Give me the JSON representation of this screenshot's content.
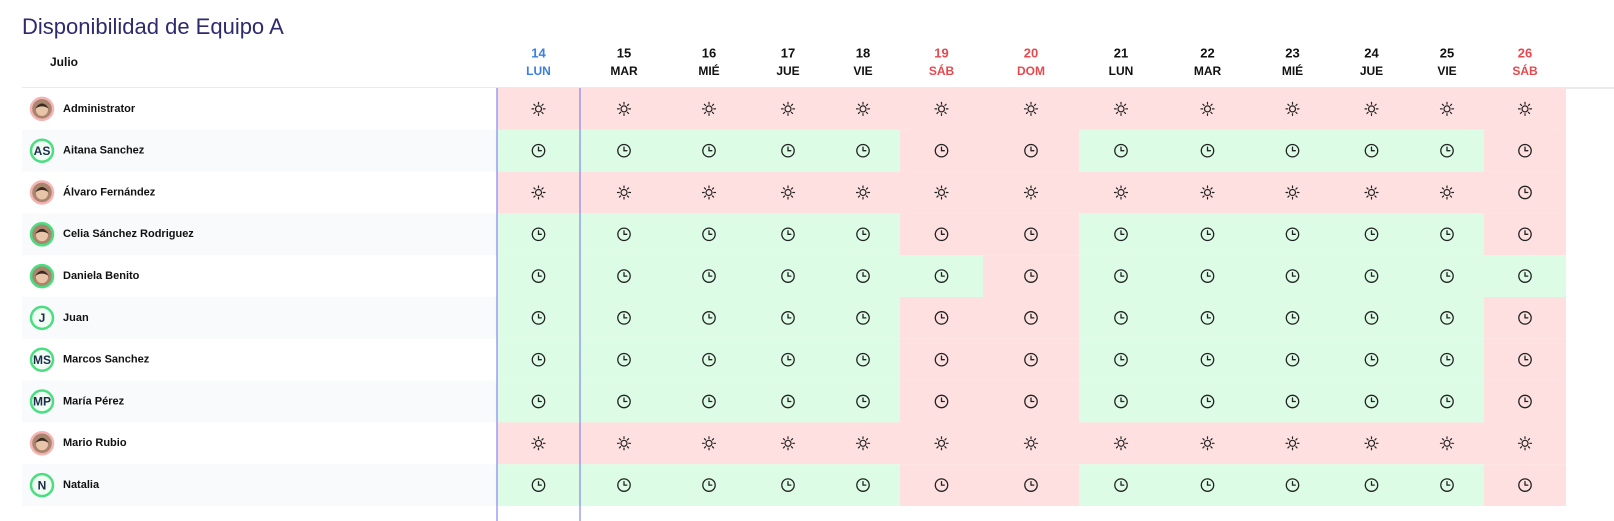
{
  "title": "Disponibilidad de Equipo A",
  "month": "Julio",
  "days": [
    {
      "day": 14,
      "weekday": "LUN",
      "color": "#3b7fe0"
    },
    {
      "day": 15,
      "weekday": "MAR",
      "color": "#111111"
    },
    {
      "day": 16,
      "weekday": "MIÉ",
      "color": "#111111"
    },
    {
      "day": 17,
      "weekday": "JUE",
      "color": "#111111"
    },
    {
      "day": 18,
      "weekday": "VIE",
      "color": "#111111"
    },
    {
      "day": 19,
      "weekday": "SÁB",
      "color": "#e5484d"
    },
    {
      "day": 20,
      "weekday": "DOM",
      "color": "#e5484d"
    },
    {
      "day": 21,
      "weekday": "LUN",
      "color": "#111111"
    },
    {
      "day": 22,
      "weekday": "MAR",
      "color": "#111111"
    },
    {
      "day": 23,
      "weekday": "MIÉ",
      "color": "#111111"
    },
    {
      "day": 24,
      "weekday": "JUE",
      "color": "#111111"
    },
    {
      "day": 25,
      "weekday": "VIE",
      "color": "#111111"
    },
    {
      "day": 26,
      "weekday": "SÁB",
      "color": "#e5484d"
    }
  ],
  "rows": [
    {
      "name": "Administrator",
      "ring": "#f4b4b4",
      "cells": "RRRRRRRRRRRRR",
      "icons": "SSSSSSSSSSSSS"
    },
    {
      "name": "Aitana Sanchez",
      "initials": "AS",
      "ring": "#4ade80",
      "cells": "GGGGGRRGGGGGR",
      "icons": "CCCCCCCCCCCCC"
    },
    {
      "name": "Álvaro Fernández",
      "ring": "#f4b4b4",
      "cells": "RRRRRRRRRRRRR",
      "icons": "SSSSSSSSSSSSC"
    },
    {
      "name": "Celia Sánchez Rodriguez",
      "ring": "#4ade80",
      "cells": "GGGGGRRGGGGGR",
      "icons": "CCCCCCCCCCCCC"
    },
    {
      "name": "Daniela Benito",
      "ring": "#4ade80",
      "cells": "GGGGGGRGGGGGG",
      "icons": "CCCCCCCCCCCCC"
    },
    {
      "name": "Juan",
      "initials": "J",
      "ring": "#4ade80",
      "cells": "GGGGGRRGGGGGR",
      "icons": "CCCCCCCCCCCCC"
    },
    {
      "name": "Marcos Sanchez",
      "initials": "MS",
      "ring": "#4ade80",
      "cells": "GGGGGRRGGGGGR",
      "icons": "CCCCCCCCCCCCC"
    },
    {
      "name": "María Pérez",
      "initials": "MP",
      "ring": "#4ade80",
      "cells": "GGGGGRRGGGGGR",
      "icons": "CCCCCCCCCCCCC"
    },
    {
      "name": "Mario Rubio",
      "ring": "#f4b4b4",
      "cells": "RRRRRRRRRRRRR",
      "icons": "SSSSSSSSSSSSS"
    },
    {
      "name": "Natalia",
      "initials": "N",
      "ring": "#4ade80",
      "cells": "GGGGGRRGGGGGR",
      "icons": "CCCCCCCCCCCCC"
    }
  ],
  "colors": {
    "G": "#dcfce6",
    "R": "#ffe0e1"
  }
}
